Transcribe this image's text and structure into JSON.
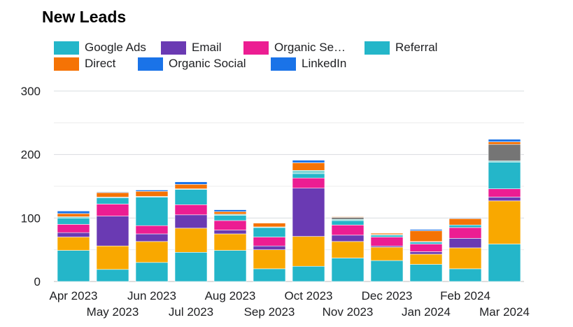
{
  "title": "New Leads",
  "colors": {
    "google_ads": "#24b6c9",
    "email": "#6a3ab3",
    "organic_search": "#ec1d92",
    "referral": "#24b6c9",
    "direct": "#f57305",
    "organic_social": "#1a73e8",
    "linkedin": "#1a73e8",
    "paid": "#f9a800",
    "other": "#757575",
    "extra": "#7fd6d6"
  },
  "legend": [
    {
      "label": "Google Ads",
      "color": "#24b6c9"
    },
    {
      "label": "Email",
      "color": "#6a3ab3"
    },
    {
      "label": "Organic Se…",
      "color": "#ec1d92"
    },
    {
      "label": "Referral",
      "color": "#24b6c9"
    },
    {
      "label": "Direct",
      "color": "#f57305"
    },
    {
      "label": "Organic Social",
      "color": "#1a73e8"
    },
    {
      "label": "LinkedIn",
      "color": "#1a73e8"
    }
  ],
  "chart_data": {
    "type": "bar",
    "stacked": true,
    "title": "New Leads",
    "xlabel": "",
    "ylabel": "",
    "ylim": [
      0,
      300
    ],
    "yticks": [
      0,
      100,
      200,
      300
    ],
    "grid": true,
    "legend_position": "top",
    "categories": [
      "Apr 2023",
      "May 2023",
      "Jun 2023",
      "Jul 2023",
      "Aug 2023",
      "Sep 2023",
      "Oct 2023",
      "Nov 2023",
      "Dec 2023",
      "Jan 2024",
      "Feb 2024",
      "Mar 2024"
    ],
    "series": [
      {
        "color": "#24b6c9",
        "values": [
          49,
          19,
          30,
          46,
          49,
          20,
          24,
          37,
          33,
          27,
          20,
          59
        ]
      },
      {
        "color": "#f9a800",
        "values": [
          21,
          37,
          33,
          38,
          26,
          30,
          47,
          26,
          21,
          16,
          33,
          68
        ]
      },
      {
        "color": "#6a3ab3",
        "values": [
          7,
          47,
          12,
          21,
          6,
          6,
          76,
          10,
          2,
          4,
          15,
          6
        ]
      },
      {
        "color": "#ec1d92",
        "values": [
          13,
          19,
          13,
          16,
          15,
          14,
          16,
          16,
          14,
          12,
          17,
          13
        ]
      },
      {
        "color": "#24b6c9",
        "values": [
          10,
          10,
          45,
          24,
          8,
          15,
          7,
          7,
          3,
          3,
          4,
          42
        ]
      },
      {
        "color": "#7fd6d6",
        "values": [
          2,
          0,
          1,
          1,
          2,
          1,
          5,
          2,
          1,
          0,
          0,
          2
        ]
      },
      {
        "color": "#757575",
        "values": [
          0,
          1,
          0,
          0,
          0,
          0,
          0,
          3,
          0,
          1,
          0,
          26
        ]
      },
      {
        "color": "#f57305",
        "values": [
          5,
          7,
          8,
          7,
          4,
          6,
          12,
          1,
          2,
          17,
          10,
          4
        ]
      },
      {
        "color": "#1a73e8",
        "values": [
          4,
          1,
          2,
          4,
          3,
          0,
          4,
          0,
          0,
          2,
          1,
          4
        ]
      }
    ]
  }
}
